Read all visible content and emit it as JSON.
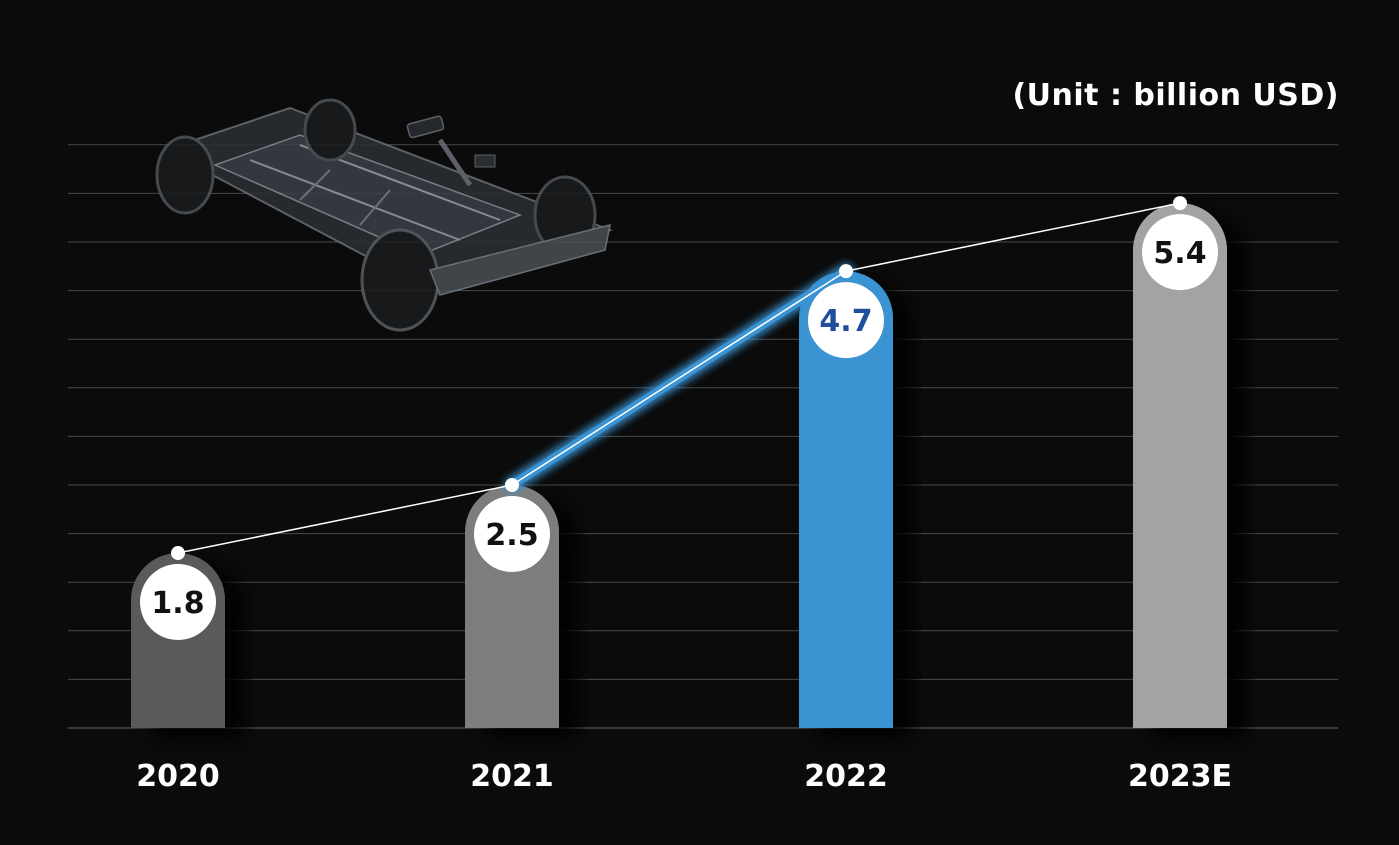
{
  "unit_label": "(Unit : billion USD)",
  "colors": {
    "background": "#0b0b0b",
    "gridline": "#4a4a4a",
    "highlight": "#3a93d2",
    "highlight_label": "#1f4f9a",
    "label_dark": "#111111"
  },
  "chart_data": {
    "type": "bar",
    "categories": [
      "2020",
      "2021",
      "2022",
      "2023E"
    ],
    "values": [
      1.8,
      2.5,
      4.7,
      5.4
    ],
    "value_labels": [
      "1.8",
      "2.5",
      "4.7",
      "5.4"
    ],
    "bar_colors": [
      "#5a5a5a",
      "#7d7d7d",
      "#3a93d2",
      "#a3a3a3"
    ],
    "highlight_index": 2,
    "trend_line": true,
    "ylim": [
      0,
      6
    ],
    "grid": true,
    "title": "",
    "xlabel": "",
    "ylabel": ""
  },
  "decoration": {
    "image_icon": "ev-chassis-icon"
  }
}
